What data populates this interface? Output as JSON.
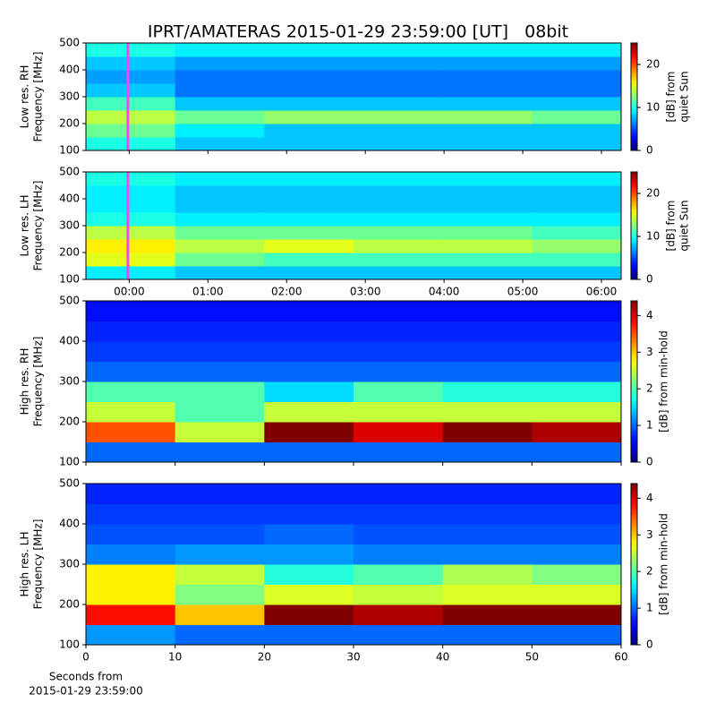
{
  "chart_data": [
    {
      "type": "heatmap",
      "title": "IPRT/AMATERAS 2015-01-29 23:59:00 [UT]   08bit",
      "ylabel": [
        "Low res. RH",
        "Frequency [MHz]"
      ],
      "colormap": "jet",
      "xlim": [
        -0.55,
        6.25
      ],
      "ylim": [
        100,
        500
      ],
      "yticks": [
        100,
        200,
        300,
        400,
        500
      ],
      "clim": [
        0,
        25
      ],
      "cticks": [
        0,
        10,
        20
      ],
      "clabel": [
        "[dB] from",
        "quiet Sun"
      ],
      "marker_x": -0.0167,
      "marker_color": "#ff40ff",
      "values": [
        [
          10,
          8,
          8,
          8,
          8,
          8
        ],
        [
          12,
          9,
          8,
          8,
          8,
          8
        ],
        [
          14,
          12,
          13,
          13,
          13,
          12
        ],
        [
          11,
          8,
          8,
          8,
          8,
          8
        ],
        [
          8,
          6,
          6,
          6,
          6,
          6
        ],
        [
          7,
          6,
          6,
          6,
          6,
          6
        ],
        [
          8,
          7,
          7,
          7,
          7,
          7
        ],
        [
          10,
          9,
          9,
          9,
          9,
          9
        ]
      ]
    },
    {
      "type": "heatmap",
      "ylabel": [
        "Low res. LH",
        "Frequency [MHz]"
      ],
      "colormap": "jet",
      "xlim": [
        -0.55,
        6.25
      ],
      "ylim": [
        100,
        500
      ],
      "yticks": [
        100,
        200,
        300,
        400,
        500
      ],
      "xticks": [
        {
          "value": 0,
          "label": "00:00"
        },
        {
          "value": 1,
          "label": "01:00"
        },
        {
          "value": 2,
          "label": "02:00"
        },
        {
          "value": 3,
          "label": "03:00"
        },
        {
          "value": 4,
          "label": "04:00"
        },
        {
          "value": 5,
          "label": "05:00"
        },
        {
          "value": 6,
          "label": "06:00"
        }
      ],
      "clim": [
        0,
        25
      ],
      "cticks": [
        0,
        10,
        20
      ],
      "clabel": [
        "[dB] from",
        "quiet Sun"
      ],
      "marker_x": -0.0167,
      "marker_color": "#ff40ff",
      "values": [
        [
          9,
          8,
          8,
          8,
          8,
          8
        ],
        [
          15,
          12,
          11,
          11,
          11,
          11
        ],
        [
          16,
          14,
          15,
          14,
          14,
          13
        ],
        [
          14,
          12,
          12,
          12,
          12,
          11
        ],
        [
          10,
          9,
          9,
          9,
          9,
          9
        ],
        [
          9,
          8,
          8,
          8,
          8,
          8
        ],
        [
          9,
          8,
          8,
          8,
          8,
          8
        ],
        [
          10,
          9,
          9,
          9,
          9,
          9
        ]
      ]
    },
    {
      "type": "heatmap",
      "ylabel": [
        "High res. RH",
        "Frequency [MHz]"
      ],
      "colormap": "jet",
      "xlim": [
        0,
        60
      ],
      "ylim": [
        100,
        500
      ],
      "yticks": [
        100,
        200,
        300,
        400,
        500
      ],
      "clim": [
        0,
        4.4
      ],
      "cticks": [
        0,
        1,
        2,
        3,
        4
      ],
      "clabel": [
        "[dB] from min-hold"
      ],
      "values": [
        [
          1,
          1,
          1,
          1,
          1,
          1
        ],
        [
          3.5,
          2.5,
          4.4,
          4,
          4.4,
          4.2
        ],
        [
          2.5,
          2,
          2.5,
          2.5,
          2.5,
          2.5
        ],
        [
          2,
          2,
          1.5,
          2,
          1.8,
          1.8
        ],
        [
          1,
          1,
          1,
          1,
          1,
          1
        ],
        [
          0.8,
          0.8,
          0.8,
          0.8,
          0.8,
          0.8
        ],
        [
          0.7,
          0.7,
          0.7,
          0.7,
          0.7,
          0.7
        ],
        [
          0.6,
          0.6,
          0.6,
          0.6,
          0.6,
          0.6
        ]
      ]
    },
    {
      "type": "heatmap",
      "ylabel": [
        "High res. LH",
        "Frequency [MHz]"
      ],
      "colormap": "jet",
      "xlim": [
        0,
        60
      ],
      "ylim": [
        100,
        500
      ],
      "yticks": [
        100,
        200,
        300,
        400,
        500
      ],
      "xticks": [
        0,
        10,
        20,
        30,
        40,
        50,
        60
      ],
      "xlabel": [
        "Seconds from",
        "2015-01-29 23:59:00"
      ],
      "clim": [
        0,
        4.4
      ],
      "cticks": [
        0,
        1,
        2,
        3,
        4
      ],
      "clabel": [
        "[dB] from min-hold"
      ],
      "values": [
        [
          1.2,
          1,
          1,
          1,
          1,
          1
        ],
        [
          3.8,
          3,
          4.4,
          4.2,
          4.4,
          4.4
        ],
        [
          2.8,
          2.2,
          2.6,
          2.5,
          2.6,
          2.6
        ],
        [
          2.8,
          2.5,
          1.8,
          2,
          2.4,
          2.2
        ],
        [
          1.1,
          1.2,
          1.2,
          1.1,
          1.1,
          1.1
        ],
        [
          0.9,
          0.9,
          1,
          0.9,
          0.9,
          0.9
        ],
        [
          0.8,
          0.8,
          0.8,
          0.8,
          0.8,
          0.8
        ],
        [
          0.7,
          0.7,
          0.7,
          0.7,
          0.7,
          0.7
        ]
      ]
    }
  ]
}
